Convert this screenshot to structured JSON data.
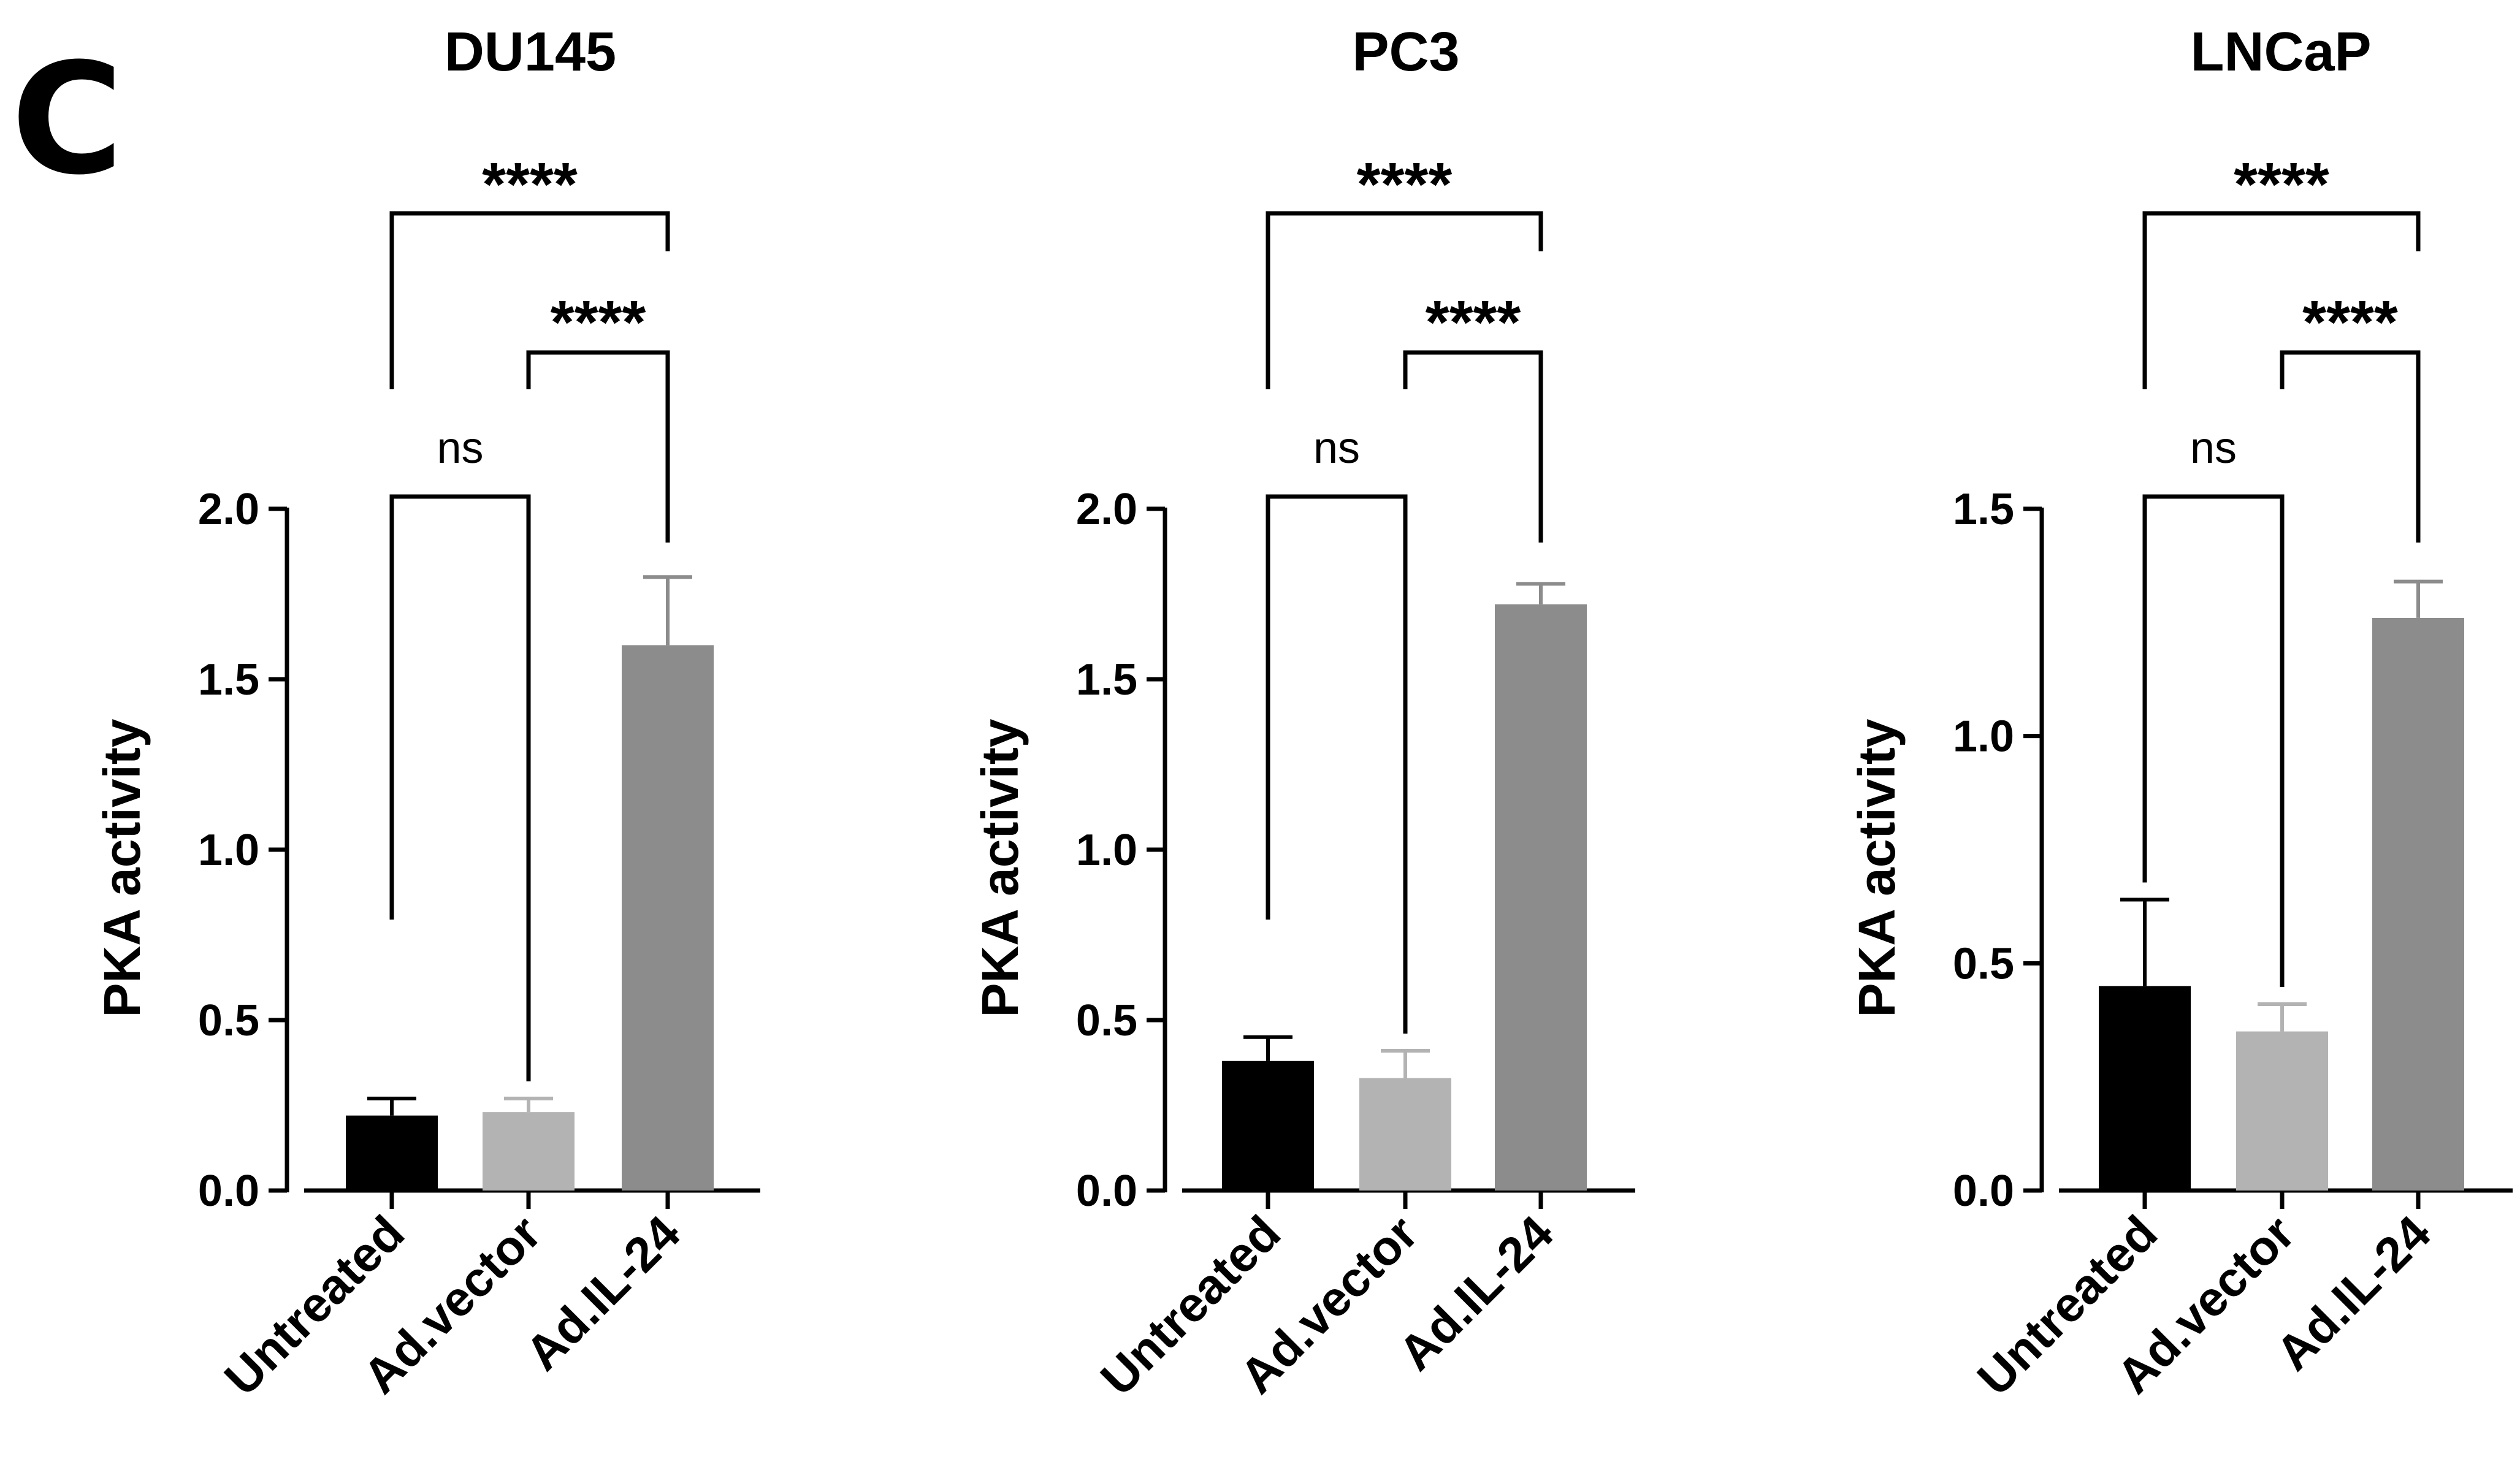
{
  "panel_label": "C",
  "chart_data": [
    {
      "type": "bar",
      "title": "DU145",
      "ylabel": "PKA activity",
      "xlabel": "",
      "ylim": [
        0,
        2.0
      ],
      "yticks": [
        0.0,
        0.5,
        1.0,
        1.5,
        2.0
      ],
      "ytick_labels": [
        "0.0",
        "0.5",
        "1.0",
        "1.5",
        "2.0"
      ],
      "categories": [
        "Untreated",
        "Ad.vector",
        "Ad.IL-24"
      ],
      "values": [
        0.22,
        0.23,
        1.6
      ],
      "errors": [
        0.05,
        0.04,
        0.2
      ],
      "bar_colors": [
        "#000000",
        "#b3b3b3",
        "#8c8c8c"
      ],
      "comparisons": [
        {
          "from": 0,
          "to": 2,
          "label": "****"
        },
        {
          "from": 1,
          "to": 2,
          "label": "****"
        },
        {
          "from": 0,
          "to": 1,
          "label": "ns"
        }
      ]
    },
    {
      "type": "bar",
      "title": "PC3",
      "ylabel": "PKA activity",
      "xlabel": "",
      "ylim": [
        0,
        2.0
      ],
      "yticks": [
        0.0,
        0.5,
        1.0,
        1.5,
        2.0
      ],
      "ytick_labels": [
        "0.0",
        "0.5",
        "1.0",
        "1.5",
        "2.0"
      ],
      "categories": [
        "Untreated",
        "Ad.vector",
        "Ad.IL-24"
      ],
      "values": [
        0.38,
        0.33,
        1.72
      ],
      "errors": [
        0.07,
        0.08,
        0.06
      ],
      "bar_colors": [
        "#000000",
        "#b3b3b3",
        "#8c8c8c"
      ],
      "comparisons": [
        {
          "from": 0,
          "to": 2,
          "label": "****"
        },
        {
          "from": 1,
          "to": 2,
          "label": "****"
        },
        {
          "from": 0,
          "to": 1,
          "label": "ns"
        }
      ]
    },
    {
      "type": "bar",
      "title": "LNCaP",
      "ylabel": "PKA activity",
      "xlabel": "",
      "ylim": [
        0,
        1.5
      ],
      "yticks": [
        0.0,
        0.5,
        1.0,
        1.5
      ],
      "ytick_labels": [
        "0.0",
        "0.5",
        "1.0",
        "1.5"
      ],
      "categories": [
        "Untreated",
        "Ad.vector",
        "Ad.IL-24"
      ],
      "values": [
        0.45,
        0.35,
        1.26
      ],
      "errors": [
        0.19,
        0.06,
        0.08
      ],
      "bar_colors": [
        "#000000",
        "#b3b3b3",
        "#8c8c8c"
      ],
      "comparisons": [
        {
          "from": 0,
          "to": 2,
          "label": "****"
        },
        {
          "from": 1,
          "to": 2,
          "label": "****"
        },
        {
          "from": 0,
          "to": 1,
          "label": "ns"
        }
      ]
    }
  ]
}
